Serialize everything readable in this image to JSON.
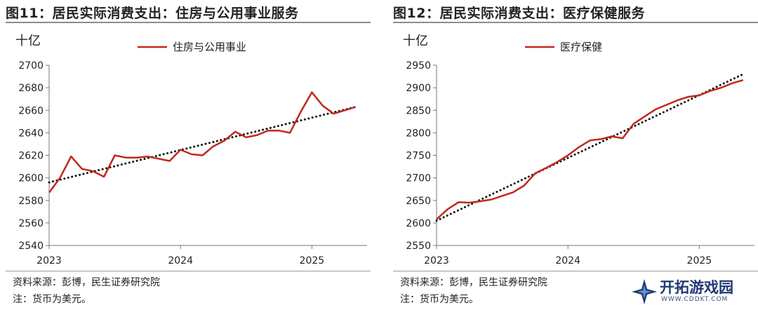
{
  "chart_data": [
    {
      "type": "line",
      "title": "图11：居民实际消费支出：住房与公用事业服务",
      "ylabel": "十亿",
      "ylim": [
        2540,
        2700
      ],
      "yticks": [
        2540,
        2560,
        2580,
        2600,
        2620,
        2640,
        2660,
        2680,
        2700
      ],
      "xlim": [
        2023.0,
        2025.42
      ],
      "xticks": [
        2023,
        2024,
        2025
      ],
      "xtick_labels": [
        "2023",
        "2024",
        "2025"
      ],
      "legend_position": "top-center",
      "grid": false,
      "series": [
        {
          "name": "住房与公用事业",
          "color": "#c0281f",
          "x": [
            2023.0,
            2023.083,
            2023.167,
            2023.25,
            2023.333,
            2023.417,
            2023.5,
            2023.583,
            2023.667,
            2023.75,
            2023.833,
            2023.917,
            2024.0,
            2024.083,
            2024.167,
            2024.25,
            2024.333,
            2024.417,
            2024.5,
            2024.583,
            2024.667,
            2024.75,
            2024.833,
            2024.917,
            2025.0,
            2025.083,
            2025.167,
            2025.25,
            2025.333
          ],
          "y": [
            2587,
            2600,
            2619,
            2608,
            2606,
            2601,
            2620,
            2618,
            2618,
            2619,
            2617,
            2615,
            2625,
            2621,
            2620,
            2628,
            2633,
            2641,
            2636,
            2638,
            2642,
            2642,
            2640,
            2659,
            2676,
            2664,
            2657,
            2660,
            2663
          ]
        }
      ],
      "trendline": {
        "style": "dotted",
        "color": "#111111",
        "x": [
          2023.0,
          2025.333
        ],
        "y": [
          2596,
          2663
        ]
      }
    },
    {
      "type": "line",
      "title": "图12：居民实际消费支出：医疗保健服务",
      "ylabel": "十亿",
      "ylim": [
        2550,
        2950
      ],
      "yticks": [
        2550,
        2600,
        2650,
        2700,
        2750,
        2800,
        2850,
        2900,
        2950
      ],
      "xlim": [
        2023.0,
        2025.42
      ],
      "xticks": [
        2023,
        2024,
        2025
      ],
      "xtick_labels": [
        "2023",
        "2024",
        "2025"
      ],
      "legend_position": "top-center",
      "grid": false,
      "series": [
        {
          "name": "医疗保健",
          "color": "#c0281f",
          "x": [
            2023.0,
            2023.083,
            2023.167,
            2023.25,
            2023.333,
            2023.417,
            2023.5,
            2023.583,
            2023.667,
            2023.75,
            2023.833,
            2023.917,
            2024.0,
            2024.083,
            2024.167,
            2024.25,
            2024.333,
            2024.417,
            2024.5,
            2024.583,
            2024.667,
            2024.75,
            2024.833,
            2024.917,
            2025.0,
            2025.083,
            2025.167,
            2025.25,
            2025.333
          ],
          "y": [
            2608,
            2630,
            2646,
            2645,
            2648,
            2652,
            2660,
            2668,
            2683,
            2710,
            2722,
            2735,
            2750,
            2768,
            2783,
            2786,
            2792,
            2788,
            2820,
            2836,
            2852,
            2862,
            2872,
            2880,
            2883,
            2893,
            2900,
            2910,
            2917
          ]
        }
      ],
      "trendline": {
        "style": "dotted",
        "color": "#111111",
        "x": [
          2023.0,
          2025.333
        ],
        "y": [
          2605,
          2930
        ]
      }
    }
  ],
  "captions": {
    "left": {
      "source": "资料来源：彭博，民生证券研究院",
      "note": "注：货币为美元。"
    },
    "right": {
      "source": "资料来源：彭博，民生证券研究院",
      "note": "注：货币为美元。"
    }
  },
  "watermark": {
    "text": "开拓游戏园",
    "sub": "WWW.CDDKT.COM"
  }
}
